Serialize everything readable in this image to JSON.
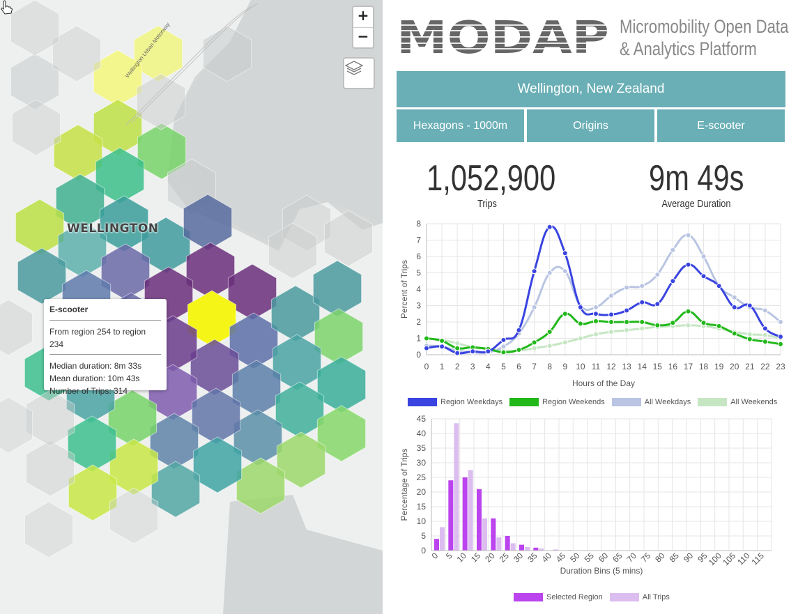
{
  "map": {
    "city_label": "WELLINGTON",
    "road_label": "Wellington Urban Motorway",
    "zoom_in": "+",
    "zoom_out": "−",
    "tooltip": {
      "title": "E-scooter",
      "route": "From region 254 to region 234",
      "median": "Median duration: 8m 33s",
      "mean": "Mean duration: 10m 43s",
      "trips": "Number of Trips: 314"
    }
  },
  "header": {
    "logo_text": "MODAP",
    "tagline_1": "Micromobility Open Data",
    "tagline_2": "& Analytics Platform"
  },
  "controls": {
    "city": "Wellington, New Zealand",
    "hex": "Hexagons - 1000m",
    "direction": "Origins",
    "mode": "E-scooter"
  },
  "stats": {
    "trips_value": "1,052,900",
    "trips_label": "Trips",
    "duration_value": "9m 49s",
    "duration_label": "Average Duration"
  },
  "colors": {
    "accent": "#6aafb6",
    "region_weekdays": "#3a44e0",
    "region_weekends": "#22b81a",
    "all_weekdays": "#b9c5e2",
    "all_weekends": "#c6e6c3",
    "selected_region": "#bb44ee",
    "all_trips": "#dcbdf0"
  },
  "chart_data": [
    {
      "type": "line",
      "xlabel": "Hours of the Day",
      "ylabel": "Percent of Trips",
      "ylim": [
        0,
        8
      ],
      "x": [
        0,
        1,
        2,
        3,
        4,
        5,
        6,
        7,
        8,
        9,
        10,
        11,
        12,
        13,
        14,
        15,
        16,
        17,
        18,
        19,
        20,
        21,
        22,
        23
      ],
      "series": [
        {
          "name": "Region Weekdays",
          "values": [
            0.4,
            0.5,
            0.1,
            0.2,
            0.2,
            0.9,
            1.5,
            5.1,
            7.8,
            6.2,
            2.9,
            2.5,
            2.45,
            2.7,
            3.2,
            3.1,
            4.5,
            5.5,
            4.8,
            4.2,
            2.9,
            3.0,
            1.6,
            1.1
          ]
        },
        {
          "name": "Region Weekends",
          "values": [
            1.0,
            0.85,
            0.4,
            0.45,
            0.35,
            0.15,
            0.3,
            0.75,
            1.4,
            2.5,
            1.9,
            2.05,
            2.0,
            2.0,
            2.0,
            1.8,
            1.95,
            2.65,
            1.95,
            1.75,
            1.3,
            0.95,
            0.8,
            0.65
          ]
        },
        {
          "name": "All Weekdays",
          "values": [
            0.55,
            0.5,
            0.25,
            0.15,
            0.15,
            0.5,
            1.3,
            2.9,
            5.0,
            5.1,
            3.0,
            2.9,
            3.6,
            4.1,
            4.2,
            4.9,
            6.4,
            7.3,
            6.0,
            4.2,
            3.5,
            2.9,
            2.7,
            2.0
          ]
        },
        {
          "name": "All Weekends",
          "values": [
            1.0,
            0.9,
            0.7,
            0.45,
            0.35,
            0.25,
            0.25,
            0.4,
            0.55,
            0.75,
            1.0,
            1.25,
            1.4,
            1.5,
            1.6,
            1.7,
            1.75,
            1.8,
            1.75,
            1.6,
            1.4,
            1.25,
            1.2,
            1.0
          ]
        }
      ]
    },
    {
      "type": "bar",
      "xlabel": "Duration Bins (5 mins)",
      "ylabel": "Percentage of Trips",
      "ylim": [
        0,
        45
      ],
      "categories": [
        "0",
        "5",
        "10",
        "15",
        "20",
        "25",
        "30",
        "35",
        "40",
        "45",
        "50",
        "55",
        "60",
        "65",
        "70",
        "75",
        "80",
        "85",
        "90",
        "95",
        "100",
        "105",
        "110",
        "115"
      ],
      "series": [
        {
          "name": "Selected Region",
          "values": [
            4,
            24,
            25,
            21,
            11,
            5,
            2,
            1,
            0,
            0,
            0,
            0,
            0,
            0,
            0,
            0,
            0,
            0,
            0,
            0,
            0,
            0,
            0,
            0
          ]
        },
        {
          "name": "All Trips",
          "values": [
            8,
            43.5,
            27.5,
            11,
            4.5,
            2.5,
            1.2,
            0.7,
            0.4,
            0.2,
            0.1,
            0.05,
            0,
            0,
            0,
            0,
            0,
            0,
            0,
            0,
            0,
            0,
            0,
            0
          ]
        }
      ]
    }
  ]
}
